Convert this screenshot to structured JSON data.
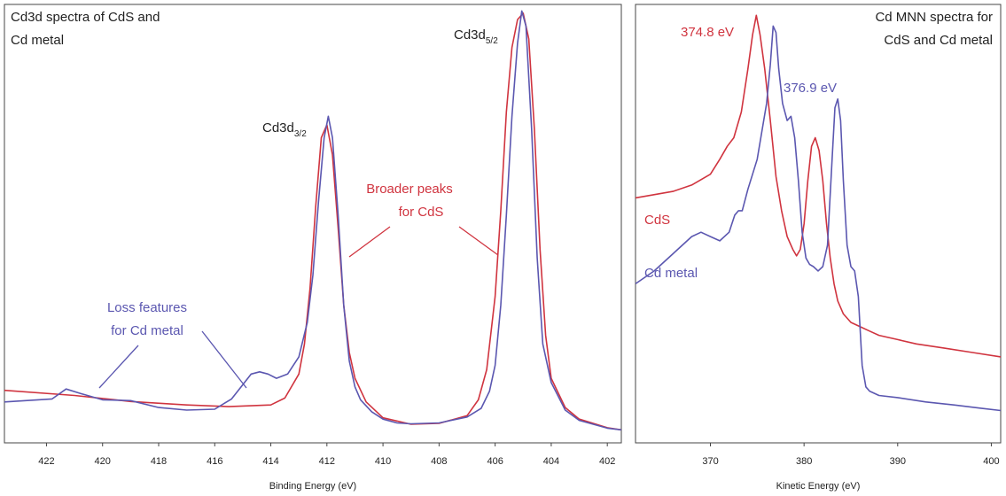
{
  "colors": {
    "cds": "#d0343f",
    "cd_metal": "#5b57b0",
    "annotation_dark": "#222222",
    "frame": "#444444"
  },
  "chart_data": [
    {
      "type": "line",
      "title": "Cd3d spectra of CdS and Cd metal",
      "title_lines": [
        "Cd3d spectra of CdS and",
        "Cd metal"
      ],
      "xlabel": "Binding Energy (eV)",
      "ylabel": "",
      "xlim": [
        423.5,
        401.5
      ],
      "ylim": [
        0,
        1.0
      ],
      "x_reversed": true,
      "x_ticks": [
        422,
        420,
        418,
        416,
        414,
        412,
        410,
        408,
        406,
        404,
        402
      ],
      "grid": false,
      "series": [
        {
          "key": "cds",
          "x": [
            423.5,
            421,
            419,
            417,
            415.5,
            414,
            413.5,
            413,
            412.8,
            412.6,
            412.4,
            412.2,
            412.0,
            411.8,
            411.6,
            411.4,
            411.2,
            411.0,
            410.6,
            410,
            409,
            408,
            407,
            406.6,
            406.3,
            406.0,
            405.8,
            405.6,
            405.4,
            405.2,
            405.0,
            404.8,
            404.6,
            404.4,
            404.2,
            404.0,
            403.5,
            403,
            402,
            401.5
          ],
          "y": [
            0.112,
            0.1,
            0.086,
            0.078,
            0.074,
            0.078,
            0.094,
            0.15,
            0.22,
            0.35,
            0.54,
            0.7,
            0.73,
            0.66,
            0.49,
            0.31,
            0.2,
            0.14,
            0.085,
            0.048,
            0.033,
            0.035,
            0.053,
            0.09,
            0.16,
            0.33,
            0.53,
            0.76,
            0.91,
            0.975,
            0.99,
            0.93,
            0.72,
            0.44,
            0.24,
            0.14,
            0.072,
            0.045,
            0.025,
            0.02
          ]
        },
        {
          "key": "cd_metal",
          "x": [
            423.5,
            421.8,
            421.3,
            420.8,
            420,
            419,
            418,
            417,
            416,
            415.4,
            415,
            414.7,
            414.4,
            414.1,
            413.8,
            413.4,
            413,
            412.7,
            412.5,
            412.3,
            412.1,
            411.95,
            411.8,
            411.6,
            411.4,
            411.2,
            411.0,
            410.8,
            410.4,
            410,
            409.5,
            409,
            408,
            407,
            406.5,
            406.2,
            406.0,
            405.8,
            405.6,
            405.4,
            405.2,
            405.05,
            404.9,
            404.7,
            404.5,
            404.3,
            404.0,
            403.5,
            403,
            402,
            401.5
          ],
          "y": [
            0.085,
            0.092,
            0.115,
            0.105,
            0.09,
            0.088,
            0.072,
            0.066,
            0.068,
            0.092,
            0.125,
            0.15,
            0.155,
            0.15,
            0.14,
            0.15,
            0.19,
            0.27,
            0.38,
            0.55,
            0.7,
            0.75,
            0.7,
            0.52,
            0.31,
            0.18,
            0.12,
            0.09,
            0.062,
            0.045,
            0.036,
            0.034,
            0.036,
            0.05,
            0.07,
            0.11,
            0.17,
            0.31,
            0.52,
            0.75,
            0.92,
            0.995,
            0.96,
            0.72,
            0.42,
            0.22,
            0.13,
            0.066,
            0.042,
            0.024,
            0.02
          ]
        }
      ],
      "annotations": {
        "cd3d32": {
          "base": "Cd3d",
          "sub": "3/2"
        },
        "cd3d52": {
          "base": "Cd3d",
          "sub": "5/2"
        },
        "broader": [
          "Broader peaks",
          "for CdS"
        ],
        "loss": [
          "Loss features",
          "for Cd metal"
        ]
      }
    },
    {
      "type": "line",
      "title": "Cd MNN spectra for CdS and Cd metal",
      "title_lines": [
        "Cd MNN spectra for",
        "CdS and Cd metal"
      ],
      "xlabel": "Kinetic Energy (eV)",
      "ylabel": "",
      "xlim": [
        362,
        401
      ],
      "ylim": [
        0,
        1.0
      ],
      "x_ticks": [
        370,
        380,
        390,
        400
      ],
      "grid": false,
      "series": [
        {
          "name": "CdS",
          "key": "cds",
          "x": [
            362,
            366,
            368,
            370,
            371,
            371.8,
            372.5,
            373.3,
            374,
            374.5,
            374.9,
            375.3,
            375.8,
            376.4,
            377,
            377.6,
            378.2,
            378.8,
            379.2,
            379.6,
            380,
            380.4,
            380.8,
            381.2,
            381.6,
            382,
            382.4,
            382.8,
            383.2,
            383.6,
            384.2,
            385,
            386,
            387,
            388,
            390,
            392,
            395,
            398,
            401
          ],
          "y": [
            0.56,
            0.575,
            0.59,
            0.615,
            0.65,
            0.68,
            0.7,
            0.76,
            0.86,
            0.94,
            0.985,
            0.94,
            0.86,
            0.74,
            0.61,
            0.53,
            0.47,
            0.44,
            0.425,
            0.44,
            0.5,
            0.6,
            0.68,
            0.7,
            0.67,
            0.6,
            0.5,
            0.42,
            0.36,
            0.32,
            0.29,
            0.27,
            0.26,
            0.25,
            0.24,
            0.23,
            0.22,
            0.21,
            0.2,
            0.19
          ]
        },
        {
          "name": "Cd metal",
          "key": "cd_metal",
          "x": [
            362,
            364,
            366,
            368,
            369,
            370,
            371,
            372,
            372.6,
            373,
            373.4,
            374,
            375,
            376,
            376.4,
            376.7,
            377,
            377.3,
            377.7,
            378.2,
            378.6,
            379,
            379.4,
            379.8,
            380.2,
            380.6,
            381,
            381.5,
            382,
            382.5,
            383,
            383.3,
            383.6,
            383.9,
            384.2,
            384.6,
            385,
            385.4,
            385.8,
            386.2,
            386.6,
            387,
            388,
            390,
            393,
            396,
            399,
            401
          ],
          "y": [
            0.36,
            0.39,
            0.43,
            0.47,
            0.48,
            0.47,
            0.46,
            0.48,
            0.52,
            0.53,
            0.53,
            0.58,
            0.65,
            0.78,
            0.87,
            0.96,
            0.945,
            0.86,
            0.78,
            0.74,
            0.75,
            0.7,
            0.6,
            0.48,
            0.42,
            0.405,
            0.4,
            0.39,
            0.4,
            0.45,
            0.65,
            0.77,
            0.79,
            0.74,
            0.6,
            0.45,
            0.4,
            0.39,
            0.33,
            0.17,
            0.12,
            0.11,
            0.1,
            0.095,
            0.085,
            0.078,
            0.07,
            0.065
          ]
        }
      ],
      "annotations": {
        "cds_peak": "374.8 eV",
        "metal_peak": "376.9 eV"
      }
    }
  ]
}
